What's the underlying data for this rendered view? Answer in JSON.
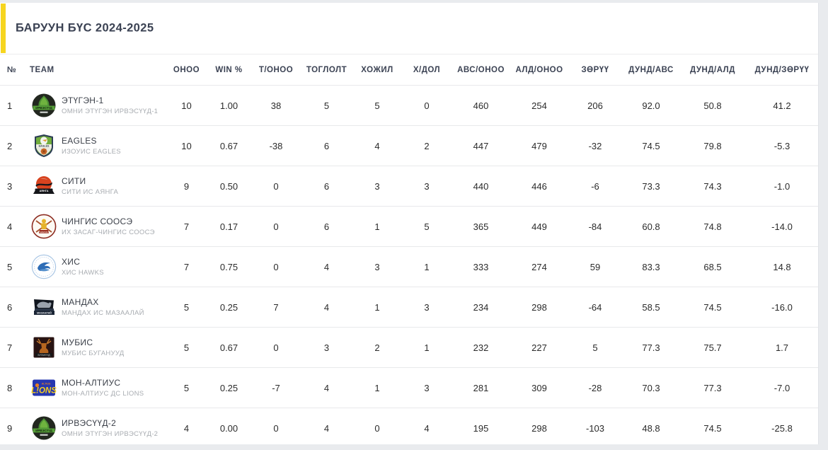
{
  "title": "БАРУУН БҮС 2024-2025",
  "colors": {
    "accent_bar": "#f6d51f",
    "header_text": "#3b4253",
    "page_background": "#e9ebee"
  },
  "table": {
    "columns": [
      "№",
      "TEAM",
      "ОНОО",
      "WIN %",
      "Т/ОНОО",
      "ТОГЛОЛТ",
      "ХОЖИЛ",
      "Х/ДОЛ",
      "АВС/ОНОО",
      "АЛД/ОНОО",
      "ЗӨРҮҮ",
      "ДУНД/АВС",
      "ДУНД/АЛД",
      "ДУНД/ЗӨРҮҮ"
    ],
    "rows": [
      {
        "rank": "1",
        "team": "ЭТҮГЭН-1",
        "subtitle": "ОМНИ ЭТҮГЭН ИРВЭСҮҮД-1",
        "logo": "irvesuud",
        "values": [
          "10",
          "1.00",
          "38",
          "5",
          "5",
          "0",
          "460",
          "254",
          "206",
          "92.0",
          "50.8",
          "41.2"
        ]
      },
      {
        "rank": "2",
        "team": "EAGLES",
        "subtitle": "ИЗОУИС EAGLES",
        "logo": "eagles",
        "values": [
          "10",
          "0.67",
          "-38",
          "6",
          "4",
          "2",
          "447",
          "479",
          "-32",
          "74.5",
          "79.8",
          "-5.3"
        ]
      },
      {
        "rank": "3",
        "team": "СИТИ",
        "subtitle": "СИТИ ИС АЯНГА",
        "logo": "citi",
        "values": [
          "9",
          "0.50",
          "0",
          "6",
          "3",
          "3",
          "440",
          "446",
          "-6",
          "73.3",
          "74.3",
          "-1.0"
        ]
      },
      {
        "rank": "4",
        "team": "ЧИНГИС СООСЭ",
        "subtitle": "ИХ ЗАСАГ-ЧИНГИС СООСЭ",
        "logo": "chingis",
        "values": [
          "7",
          "0.17",
          "0",
          "6",
          "1",
          "5",
          "365",
          "449",
          "-84",
          "60.8",
          "74.8",
          "-14.0"
        ]
      },
      {
        "rank": "5",
        "team": "ХИС",
        "subtitle": "ХИС HAWKS",
        "logo": "his",
        "values": [
          "7",
          "0.75",
          "0",
          "4",
          "3",
          "1",
          "333",
          "274",
          "59",
          "83.3",
          "68.5",
          "14.8"
        ]
      },
      {
        "rank": "6",
        "team": "МАНДАХ",
        "subtitle": "МАНДАХ ИС МАЗААЛАЙ",
        "logo": "mandah",
        "values": [
          "5",
          "0.25",
          "7",
          "4",
          "1",
          "3",
          "234",
          "298",
          "-64",
          "58.5",
          "74.5",
          "-16.0"
        ]
      },
      {
        "rank": "7",
        "team": "МУБИС",
        "subtitle": "МУБИС БУГАНУУД",
        "logo": "mubis",
        "values": [
          "5",
          "0.67",
          "0",
          "3",
          "2",
          "1",
          "232",
          "227",
          "5",
          "77.3",
          "75.7",
          "1.7"
        ]
      },
      {
        "rank": "8",
        "team": "МОН-АЛТИУС",
        "subtitle": "МОН-АЛТИУС ДС LIONS",
        "logo": "lions",
        "values": [
          "5",
          "0.25",
          "-7",
          "4",
          "1",
          "3",
          "281",
          "309",
          "-28",
          "70.3",
          "77.3",
          "-7.0"
        ]
      },
      {
        "rank": "9",
        "team": "ИРВЭСҮҮД-2",
        "subtitle": "ОМНИ ЭТҮГЭН ИРВЭСҮҮД-2",
        "logo": "irvesuud",
        "values": [
          "4",
          "0.00",
          "0",
          "4",
          "0",
          "4",
          "195",
          "298",
          "-103",
          "48.8",
          "74.5",
          "-25.8"
        ]
      }
    ]
  }
}
